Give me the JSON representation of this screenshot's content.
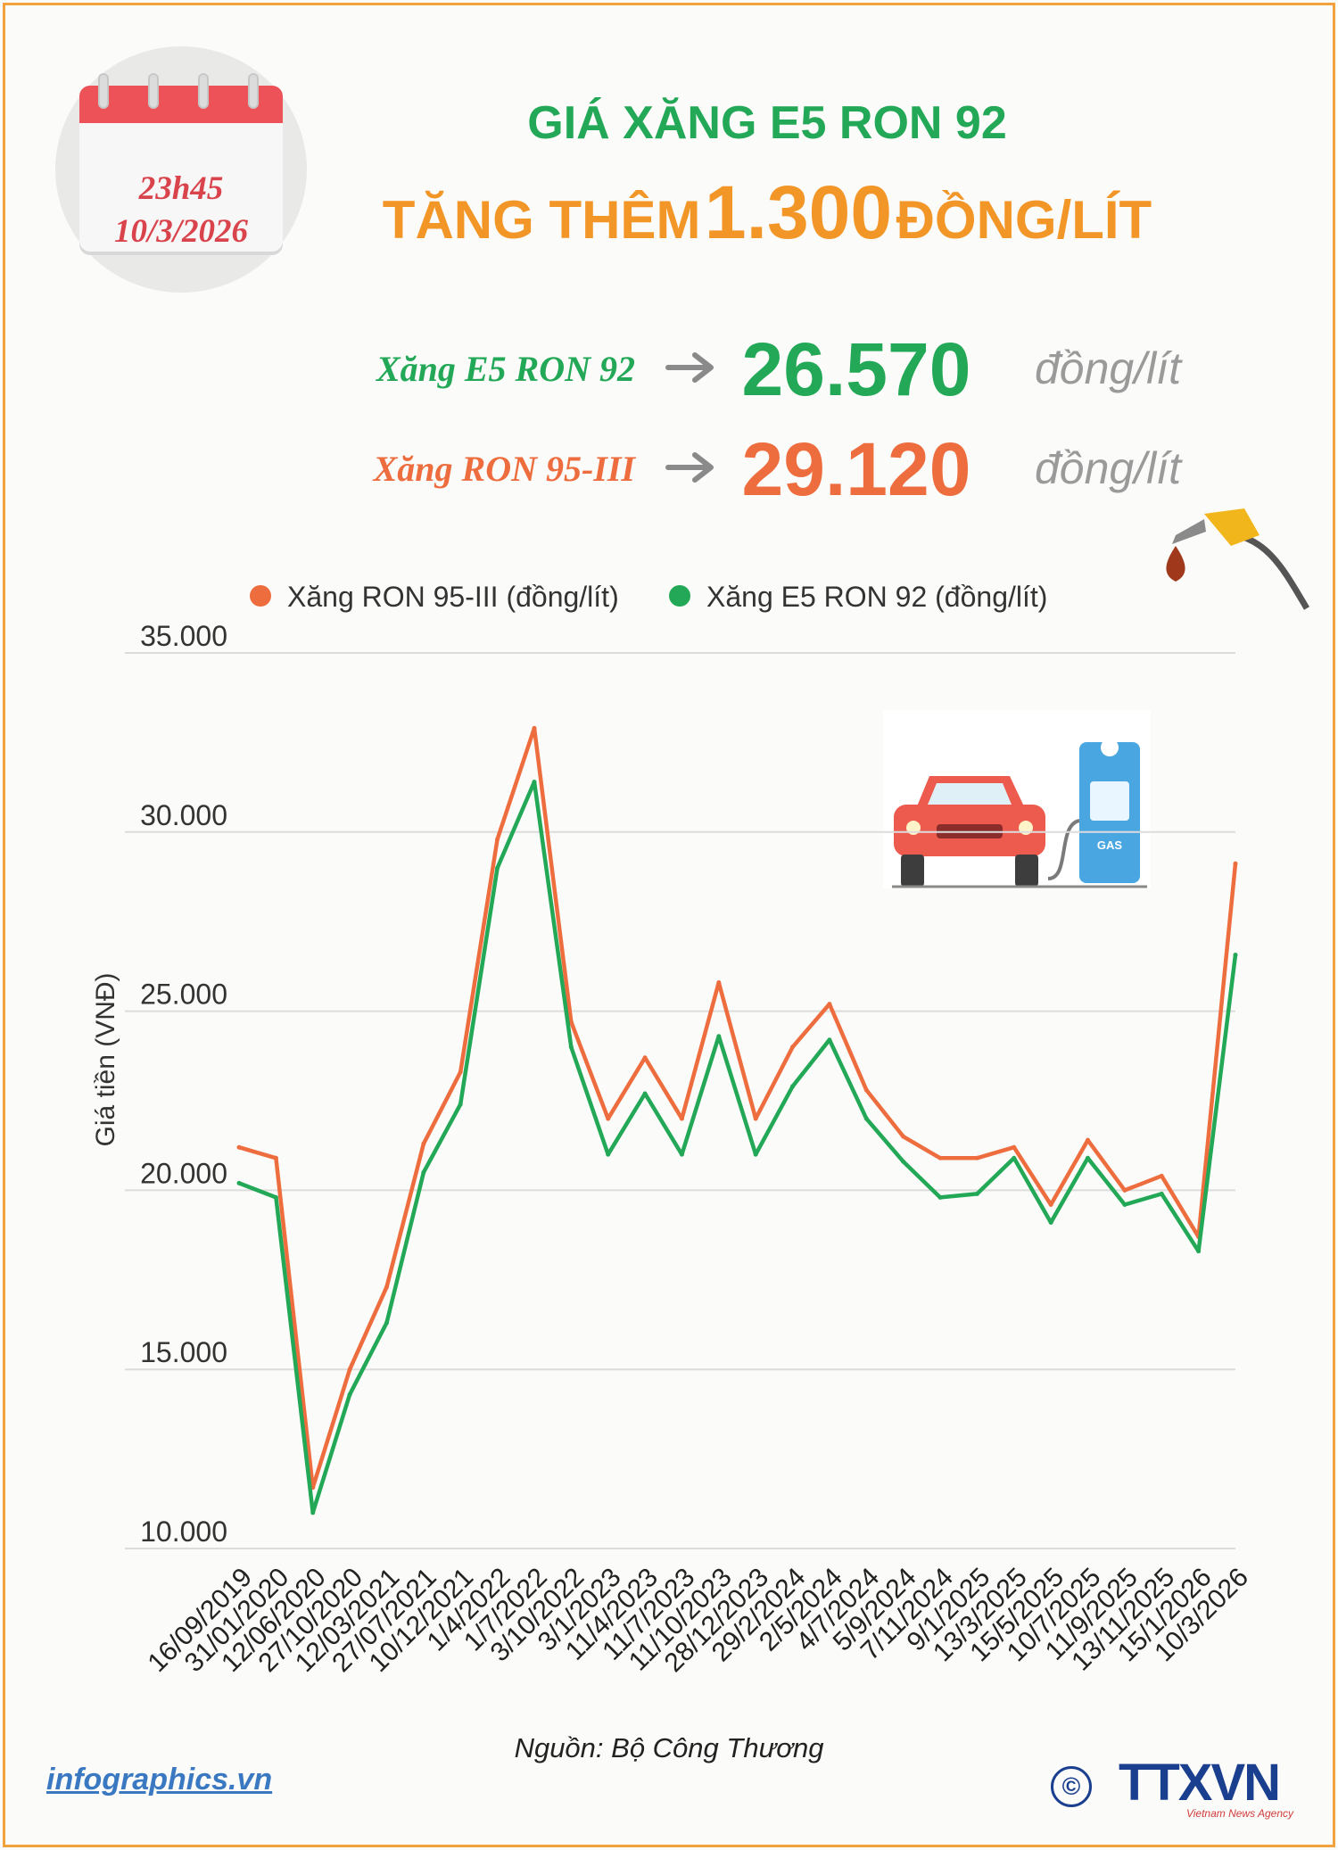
{
  "calendar": {
    "time": "23h45",
    "date": "10/3/2026"
  },
  "title": {
    "line1": "GIÁ XĂNG E5 RON 92",
    "line2_prefix": "TĂNG THÊM",
    "line2_amount": "1.300",
    "line2_suffix": "ĐỒNG/LÍT"
  },
  "prices": [
    {
      "label": "Xăng E5 RON 92",
      "value": "26.570",
      "unit": "đồng/lít",
      "color": "#22a856"
    },
    {
      "label": "Xăng RON 95-III",
      "value": "29.120",
      "unit": "đồng/lít",
      "color": "#ee6d3f"
    }
  ],
  "chart_data": {
    "type": "line",
    "ylabel": "Giá tiền (VNĐ)",
    "ylim": [
      10000,
      35000
    ],
    "yticks": [
      "35.000",
      "30.000",
      "25.000",
      "20.000",
      "15.000",
      "10.000"
    ],
    "grid": true,
    "legend_position": "top",
    "x_tick_labels": [
      "16/09/2019",
      "31/01/2020",
      "12/06/2020",
      "27/10/2020",
      "12/03/2021",
      "27/07/2021",
      "10/12/2021",
      "1/4/2022",
      "1/7/2022",
      "3/10/2022",
      "3/1/2023",
      "11/4/2023",
      "11/7/2023",
      "11/10/2023",
      "28/12/2023",
      "29/2/2024",
      "2/5/2024",
      "4/7/2024",
      "5/9/2024",
      "7/11/2024",
      "9/1/2025",
      "13/3/2025",
      "15/5/2025",
      "10/7/2025",
      "11/9/2025",
      "13/11/2025",
      "15/1/2026",
      "10/3/2026"
    ],
    "series": [
      {
        "name": "Xăng RON 95-III (đồng/lít)",
        "color": "#ee6d3f",
        "points": [
          [
            "16/09/2019",
            21200
          ],
          [
            "31/01/2020",
            20900
          ],
          [
            "12/06/2020",
            11700
          ],
          [
            "27/10/2020",
            15000
          ],
          [
            "12/03/2021",
            17300
          ],
          [
            "27/07/2021",
            21300
          ],
          [
            "10/12/2021",
            23300
          ],
          [
            "1/4/2022",
            29800
          ],
          [
            "1/7/2022",
            32900
          ],
          [
            "3/10/2022",
            24700
          ],
          [
            "3/1/2023",
            22000
          ],
          [
            "11/4/2023",
            23700
          ],
          [
            "11/7/2023",
            22000
          ],
          [
            "11/10/2023",
            25800
          ],
          [
            "28/12/2023",
            22000
          ],
          [
            "29/2/2024",
            24000
          ],
          [
            "2/5/2024",
            25200
          ],
          [
            "4/7/2024",
            22800
          ],
          [
            "5/9/2024",
            21500
          ],
          [
            "7/11/2024",
            20900
          ],
          [
            "9/1/2025",
            20900
          ],
          [
            "13/3/2025",
            21200
          ],
          [
            "15/5/2025",
            19600
          ],
          [
            "10/7/2025",
            21400
          ],
          [
            "11/9/2025",
            20000
          ],
          [
            "13/11/2025",
            20400
          ],
          [
            "15/1/2026",
            18700
          ],
          [
            "10/3/2026",
            29120
          ]
        ]
      },
      {
        "name": "Xăng E5 RON 92 (đồng/lít)",
        "color": "#22a856",
        "points": [
          [
            "16/09/2019",
            20200
          ],
          [
            "31/01/2020",
            19800
          ],
          [
            "12/06/2020",
            11000
          ],
          [
            "27/10/2020",
            14300
          ],
          [
            "12/03/2021",
            16300
          ],
          [
            "27/07/2021",
            20500
          ],
          [
            "10/12/2021",
            22400
          ],
          [
            "1/4/2022",
            29000
          ],
          [
            "1/7/2022",
            31400
          ],
          [
            "3/10/2022",
            24000
          ],
          [
            "3/1/2023",
            21000
          ],
          [
            "11/4/2023",
            22700
          ],
          [
            "11/7/2023",
            21000
          ],
          [
            "11/10/2023",
            24300
          ],
          [
            "28/12/2023",
            21000
          ],
          [
            "29/2/2024",
            22900
          ],
          [
            "2/5/2024",
            24200
          ],
          [
            "4/7/2024",
            22000
          ],
          [
            "5/9/2024",
            20800
          ],
          [
            "7/11/2024",
            19800
          ],
          [
            "9/1/2025",
            19900
          ],
          [
            "13/3/2025",
            20900
          ],
          [
            "15/5/2025",
            19100
          ],
          [
            "10/7/2025",
            20900
          ],
          [
            "11/9/2025",
            19600
          ],
          [
            "13/11/2025",
            19900
          ],
          [
            "15/1/2026",
            18300
          ],
          [
            "10/3/2026",
            26570
          ]
        ]
      }
    ]
  },
  "source": "Nguồn: Bộ Công Thương",
  "footer": {
    "site": "infographics.vn",
    "copyright_symbol": "©",
    "logo_text": "TTXVN",
    "logo_sub": "Vietnam News Agency"
  }
}
